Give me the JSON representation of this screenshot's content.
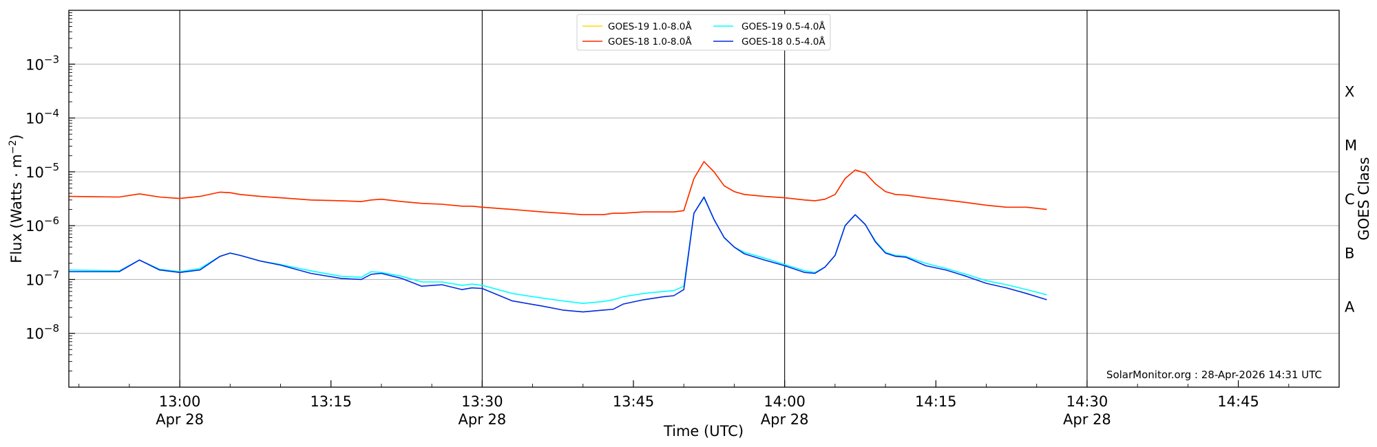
{
  "chart_data": {
    "type": "line",
    "title": "",
    "xlabel": "Time (UTC)",
    "ylabel": "Flux (Watts · m",
    "ylabel_sup": "−2",
    "ylabel_close": ")",
    "y_scale": "log",
    "ylim": [
      1e-09,
      0.01
    ],
    "y_ticks": [
      {
        "value": 1e-08,
        "label_base": "10",
        "label_exp": "−8"
      },
      {
        "value": 1e-07,
        "label_base": "10",
        "label_exp": "−7"
      },
      {
        "value": 1e-06,
        "label_base": "10",
        "label_exp": "−6"
      },
      {
        "value": 1e-05,
        "label_base": "10",
        "label_exp": "−5"
      },
      {
        "value": 0.0001,
        "label_base": "10",
        "label_exp": "−4"
      },
      {
        "value": 0.001,
        "label_base": "10",
        "label_exp": "−3"
      }
    ],
    "xlim": [
      "2026-04-28 12:49",
      "2026-04-28 14:55"
    ],
    "x_ticks": [
      {
        "time": "2026-04-28 13:00",
        "label": "13:00",
        "sublabel": "Apr 28"
      },
      {
        "time": "2026-04-28 13:15",
        "label": "13:15",
        "sublabel": ""
      },
      {
        "time": "2026-04-28 13:30",
        "label": "13:30",
        "sublabel": "Apr 28"
      },
      {
        "time": "2026-04-28 13:45",
        "label": "13:45",
        "sublabel": ""
      },
      {
        "time": "2026-04-28 14:00",
        "label": "14:00",
        "sublabel": "Apr 28"
      },
      {
        "time": "2026-04-28 14:15",
        "label": "14:15",
        "sublabel": ""
      },
      {
        "time": "2026-04-28 14:30",
        "label": "14:30",
        "sublabel": "Apr 28"
      },
      {
        "time": "2026-04-28 14:45",
        "label": "14:45",
        "sublabel": ""
      }
    ],
    "vertical_lines": [
      "2026-04-28 13:00",
      "2026-04-28 13:30",
      "2026-04-28 14:00",
      "2026-04-28 14:30"
    ],
    "grid": "horizontal at decades",
    "legend": {
      "placement": "top-center",
      "columns": 2
    },
    "right_axis": {
      "label": "GOES Class",
      "classes": [
        {
          "label": "A",
          "value": 1e-08
        },
        {
          "label": "B",
          "value": 1e-07
        },
        {
          "label": "C",
          "value": 1e-06
        },
        {
          "label": "M",
          "value": 1e-05
        },
        {
          "label": "X",
          "value": 0.0001
        }
      ]
    },
    "annotation": "SolarMonitor.org : 28-Apr-2026 14:31 UTC",
    "x_times": [
      "2026-04-28 12:49",
      "2026-04-28 12:54",
      "2026-04-28 12:56",
      "2026-04-28 12:58",
      "2026-04-28 13:00",
      "2026-04-28 13:02",
      "2026-04-28 13:04",
      "2026-04-28 13:05",
      "2026-04-28 13:06",
      "2026-04-28 13:08",
      "2026-04-28 13:10",
      "2026-04-28 13:13",
      "2026-04-28 13:16",
      "2026-04-28 13:18",
      "2026-04-28 13:19",
      "2026-04-28 13:20",
      "2026-04-28 13:22",
      "2026-04-28 13:24",
      "2026-04-28 13:26",
      "2026-04-28 13:28",
      "2026-04-28 13:29",
      "2026-04-28 13:30",
      "2026-04-28 13:33",
      "2026-04-28 13:36",
      "2026-04-28 13:38",
      "2026-04-28 13:40",
      "2026-04-28 13:42",
      "2026-04-28 13:43",
      "2026-04-28 13:44",
      "2026-04-28 13:46",
      "2026-04-28 13:48",
      "2026-04-28 13:49",
      "2026-04-28 13:50",
      "2026-04-28 13:51",
      "2026-04-28 13:52",
      "2026-04-28 13:53",
      "2026-04-28 13:54",
      "2026-04-28 13:55",
      "2026-04-28 13:56",
      "2026-04-28 13:58",
      "2026-04-28 14:00",
      "2026-04-28 14:02",
      "2026-04-28 14:03",
      "2026-04-28 14:04",
      "2026-04-28 14:05",
      "2026-04-28 14:06",
      "2026-04-28 14:07",
      "2026-04-28 14:08",
      "2026-04-28 14:09",
      "2026-04-28 14:10",
      "2026-04-28 14:11",
      "2026-04-28 14:12",
      "2026-04-28 14:14",
      "2026-04-28 14:16",
      "2026-04-28 14:18",
      "2026-04-28 14:20",
      "2026-04-28 14:22",
      "2026-04-28 14:24",
      "2026-04-28 14:26"
    ],
    "series": [
      {
        "name": "GOES-19 1.0-8.0Å",
        "color": "#ffd700",
        "values": [
          3.5e-06,
          3.4e-06,
          3.9e-06,
          3.4e-06,
          3.2e-06,
          3.5e-06,
          4.2e-06,
          4.1e-06,
          3.8e-06,
          3.5e-06,
          3.3e-06,
          3e-06,
          2.9e-06,
          2.8e-06,
          3e-06,
          3.1e-06,
          2.8e-06,
          2.6e-06,
          2.5e-06,
          2.3e-06,
          2.3e-06,
          2.2e-06,
          2e-06,
          1.8e-06,
          1.7e-06,
          1.6e-06,
          1.6e-06,
          1.7e-06,
          1.7e-06,
          1.8e-06,
          1.8e-06,
          1.8e-06,
          1.9e-06,
          7.5e-06,
          1.55e-05,
          1e-05,
          5.5e-06,
          4.3e-06,
          3.8e-06,
          3.5e-06,
          3.3e-06,
          3e-06,
          2.9e-06,
          3.1e-06,
          3.8e-06,
          7.5e-06,
          1.08e-05,
          9.5e-06,
          6e-06,
          4.3e-06,
          3.8e-06,
          3.7e-06,
          3.3e-06,
          3e-06,
          2.7e-06,
          2.4e-06,
          2.2e-06,
          2.2e-06,
          2e-06
        ]
      },
      {
        "name": "GOES-18 1.0-8.0Å",
        "color": "#ff2600",
        "values": [
          3.5e-06,
          3.4e-06,
          3.9e-06,
          3.4e-06,
          3.2e-06,
          3.5e-06,
          4.2e-06,
          4.1e-06,
          3.8e-06,
          3.5e-06,
          3.3e-06,
          3e-06,
          2.9e-06,
          2.8e-06,
          3e-06,
          3.1e-06,
          2.8e-06,
          2.6e-06,
          2.5e-06,
          2.3e-06,
          2.3e-06,
          2.2e-06,
          2e-06,
          1.8e-06,
          1.7e-06,
          1.6e-06,
          1.6e-06,
          1.7e-06,
          1.7e-06,
          1.8e-06,
          1.8e-06,
          1.8e-06,
          1.9e-06,
          7.5e-06,
          1.55e-05,
          1e-05,
          5.5e-06,
          4.3e-06,
          3.8e-06,
          3.5e-06,
          3.3e-06,
          3e-06,
          2.9e-06,
          3.1e-06,
          3.8e-06,
          7.5e-06,
          1.08e-05,
          9.5e-06,
          6e-06,
          4.3e-06,
          3.8e-06,
          3.7e-06,
          3.3e-06,
          3e-06,
          2.7e-06,
          2.4e-06,
          2.2e-06,
          2.2e-06,
          2e-06
        ]
      },
      {
        "name": "GOES-19 0.5-4.0Å",
        "color": "#00ffff",
        "values": [
          1.5e-07,
          1.45e-07,
          2.3e-07,
          1.55e-07,
          1.4e-07,
          1.6e-07,
          2.7e-07,
          3.1e-07,
          2.8e-07,
          2.2e-07,
          1.9e-07,
          1.45e-07,
          1.15e-07,
          1.1e-07,
          1.4e-07,
          1.35e-07,
          1.15e-07,
          9e-08,
          9e-08,
          7.8e-08,
          8.2e-08,
          7.8e-08,
          5.5e-08,
          4.5e-08,
          4e-08,
          3.6e-08,
          3.9e-08,
          4.2e-08,
          4.8e-08,
          5.5e-08,
          6e-08,
          6.2e-08,
          7.5e-08,
          1.7e-06,
          3.3e-06,
          1.3e-06,
          6e-07,
          4e-07,
          3.2e-07,
          2.5e-07,
          1.9e-07,
          1.45e-07,
          1.35e-07,
          1.7e-07,
          2.8e-07,
          1e-06,
          1.6e-06,
          1.05e-06,
          5.2e-07,
          3.2e-07,
          2.8e-07,
          2.7e-07,
          2e-07,
          1.6e-07,
          1.25e-07,
          9.5e-08,
          8e-08,
          6.5e-08,
          5.2e-08
        ]
      },
      {
        "name": "GOES-18 0.5-4.0Å",
        "color": "#0028e0",
        "values": [
          1.4e-07,
          1.4e-07,
          2.3e-07,
          1.5e-07,
          1.35e-07,
          1.5e-07,
          2.7e-07,
          3.1e-07,
          2.8e-07,
          2.2e-07,
          1.85e-07,
          1.3e-07,
          1.05e-07,
          1e-07,
          1.25e-07,
          1.3e-07,
          1.05e-07,
          7.5e-08,
          8e-08,
          6.5e-08,
          7e-08,
          6.8e-08,
          4e-08,
          3.2e-08,
          2.7e-08,
          2.5e-08,
          2.7e-08,
          2.8e-08,
          3.5e-08,
          4.2e-08,
          4.8e-08,
          5e-08,
          6.5e-08,
          1.7e-06,
          3.4e-06,
          1.3e-06,
          6e-07,
          4e-07,
          3e-07,
          2.3e-07,
          1.8e-07,
          1.35e-07,
          1.3e-07,
          1.7e-07,
          2.8e-07,
          1e-06,
          1.6e-06,
          1.05e-06,
          5e-07,
          3.1e-07,
          2.7e-07,
          2.6e-07,
          1.8e-07,
          1.5e-07,
          1.15e-07,
          8.5e-08,
          7e-08,
          5.5e-08,
          4.2e-08
        ]
      }
    ]
  }
}
